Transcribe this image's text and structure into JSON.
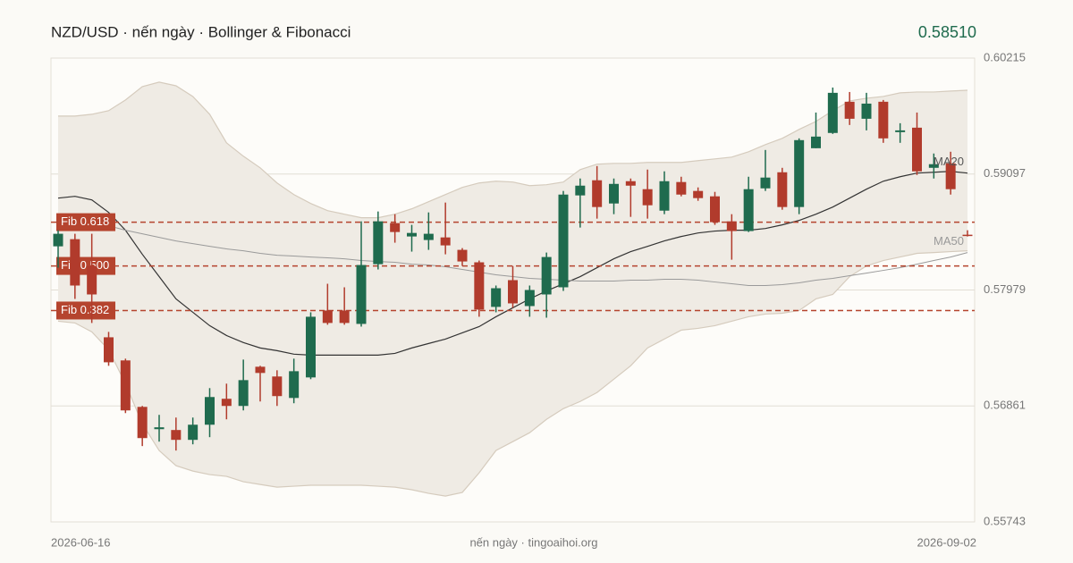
{
  "chart_data": {
    "type": "candlestick",
    "title": "NZD/USD · nến ngày · Bollinger & Fibonacci",
    "last_price": "0.58510",
    "footer": "nến ngày · tingoaihoi.org",
    "categories": [
      "2026-06-16",
      null,
      null,
      null,
      null,
      null,
      null,
      null,
      null,
      null,
      null,
      null,
      null,
      null,
      null,
      null,
      null,
      null,
      null,
      null,
      null,
      null,
      null,
      null,
      null,
      null,
      null,
      null,
      null,
      null,
      null,
      null,
      null,
      null,
      null,
      null,
      null,
      null,
      null,
      null,
      null,
      null,
      null,
      null,
      null,
      null,
      null,
      null,
      null,
      null,
      null,
      null,
      null,
      null,
      "2026-09-02"
    ],
    "open": [
      0.584,
      0.58469,
      0.58211,
      0.57523,
      0.573,
      0.56852,
      0.56637,
      0.56629,
      0.56534,
      0.5668,
      0.5693,
      0.56861,
      0.57239,
      0.57145,
      0.56938,
      0.57136,
      0.57781,
      0.57781,
      0.57652,
      0.58228,
      0.58624,
      0.58495,
      0.58461,
      0.58486,
      0.58366,
      0.58246,
      0.57816,
      0.58074,
      0.57824,
      0.57936,
      0.58005,
      0.58891,
      0.59037,
      0.58813,
      0.59028,
      0.58951,
      0.58744,
      0.5902,
      0.58934,
      0.58882,
      0.58641,
      0.58547,
      0.58959,
      0.59114,
      0.58779,
      0.59346,
      0.59493,
      0.59794,
      0.5963,
      0.59794,
      0.59501,
      0.59544,
      0.59157,
      0.592,
      0.58512
    ],
    "high": [
      0.58555,
      0.58521,
      0.58521,
      0.57575,
      0.57317,
      0.56861,
      0.56775,
      0.56749,
      0.56749,
      0.57033,
      0.57076,
      0.57308,
      0.57248,
      0.57205,
      0.57317,
      0.57764,
      0.58039,
      0.58005,
      0.58641,
      0.58736,
      0.5871,
      0.58607,
      0.58727,
      0.58822,
      0.58383,
      0.58263,
      0.58022,
      0.58211,
      0.58022,
      0.5834,
      0.58934,
      0.59054,
      0.59174,
      0.59054,
      0.59054,
      0.5914,
      0.59123,
      0.59071,
      0.58968,
      0.58925,
      0.5871,
      0.59071,
      0.59329,
      0.59157,
      0.59441,
      0.5969,
      0.59931,
      0.59888,
      0.5988,
      0.59811,
      0.59587,
      0.5969,
      0.59295,
      0.59312,
      0.58555
    ],
    "low": [
      0.58194,
      0.57893,
      0.57661,
      0.57248,
      0.56792,
      0.56474,
      0.56517,
      0.56431,
      0.56491,
      0.5656,
      0.56732,
      0.56818,
      0.56904,
      0.56861,
      0.56887,
      0.57119,
      0.57644,
      0.57644,
      0.57626,
      0.58177,
      0.58435,
      0.58349,
      0.58366,
      0.58323,
      0.58211,
      0.57721,
      0.57764,
      0.57807,
      0.57721,
      0.57712,
      0.5797,
      0.58581,
      0.58667,
      0.5871,
      0.58684,
      0.58667,
      0.5871,
      0.58882,
      0.58839,
      0.58607,
      0.58271,
      0.58538,
      0.58934,
      0.58753,
      0.5871,
      0.59346,
      0.59484,
      0.5957,
      0.59518,
      0.59398,
      0.59398,
      0.59088,
      0.59054,
      0.58899,
      0.58495
    ],
    "close": [
      0.58521,
      0.58022,
      0.57936,
      0.57282,
      0.56818,
      0.56551,
      0.56655,
      0.56534,
      0.5668,
      0.56947,
      0.56861,
      0.5711,
      0.57179,
      0.56956,
      0.57196,
      0.57721,
      0.57661,
      0.57661,
      0.5822,
      0.58641,
      0.58538,
      0.58529,
      0.58521,
      0.58409,
      0.58254,
      0.5779,
      0.57996,
      0.5785,
      0.57979,
      0.58297,
      0.58899,
      0.58985,
      0.58779,
      0.59002,
      0.58985,
      0.58796,
      0.59028,
      0.58899,
      0.58865,
      0.58633,
      0.58547,
      0.58951,
      0.59063,
      0.58779,
      0.59424,
      0.59458,
      0.5988,
      0.5963,
      0.59776,
      0.59441,
      0.59518,
      0.59123,
      0.59192,
      0.58951,
      0.5851
    ],
    "up_color": "#1f6b4e",
    "down_color": "#b13b2c",
    "ylim": [
      0.55743,
      0.60215
    ],
    "yticks": [
      0.60215,
      0.59097,
      0.57979,
      0.56861,
      0.55743
    ],
    "grid": true,
    "bollinger": {
      "fill": "#efebe4",
      "edge": "#d5cbbd",
      "upper": [
        0.59656,
        0.59656,
        0.59673,
        0.59708,
        0.59811,
        0.5994,
        0.59983,
        0.59948,
        0.59845,
        0.59673,
        0.59398,
        0.59269,
        0.59157,
        0.59011,
        0.58899,
        0.58813,
        0.58744,
        0.5871,
        0.58676,
        0.58676,
        0.5871,
        0.58762,
        0.5883,
        0.58899,
        0.58968,
        0.59011,
        0.59028,
        0.5902,
        0.58985,
        0.58994,
        0.5902,
        0.5914,
        0.59192,
        0.592,
        0.592,
        0.59209,
        0.59209,
        0.59209,
        0.59226,
        0.59243,
        0.5926,
        0.59312,
        0.59381,
        0.59441,
        0.59527,
        0.59604,
        0.59708,
        0.59802,
        0.59828,
        0.59845,
        0.5988,
        0.59888,
        0.59888,
        0.59897,
        0.59905
      ],
      "lower": [
        0.57678,
        0.57661,
        0.57575,
        0.57403,
        0.57076,
        0.56689,
        0.56431,
        0.56285,
        0.56233,
        0.56199,
        0.56182,
        0.5613,
        0.56104,
        0.56078,
        0.56087,
        0.56096,
        0.56096,
        0.56096,
        0.56096,
        0.56087,
        0.56078,
        0.56053,
        0.56018,
        0.55992,
        0.56027,
        0.56216,
        0.56431,
        0.56517,
        0.56603,
        0.56732,
        0.56835,
        0.56904,
        0.5699,
        0.57119,
        0.57248,
        0.5742,
        0.57506,
        0.57592,
        0.57609,
        0.57635,
        0.57678,
        0.57721,
        0.57747,
        0.57755,
        0.57781,
        0.57893,
        0.57936,
        0.58108,
        0.58211,
        0.58263,
        0.58297,
        0.58332,
        0.5834,
        0.58349,
        0.58357
      ]
    },
    "series": [
      {
        "name": "MA20",
        "color": "#333333",
        "values": [
          0.58865,
          0.58882,
          0.58848,
          0.58727,
          0.58555,
          0.58323,
          0.58108,
          0.57893,
          0.57764,
          0.57635,
          0.5754,
          0.57472,
          0.5742,
          0.57394,
          0.5736,
          0.57351,
          0.57351,
          0.57351,
          0.57351,
          0.57351,
          0.57368,
          0.5742,
          0.57463,
          0.57506,
          0.57566,
          0.57626,
          0.57721,
          0.57807,
          0.57893,
          0.5797,
          0.58039,
          0.58108,
          0.58194,
          0.5828,
          0.58349,
          0.584,
          0.58452,
          0.58495,
          0.58529,
          0.58547,
          0.58555,
          0.58555,
          0.58572,
          0.58607,
          0.5865,
          0.5871,
          0.58779,
          0.58865,
          0.58951,
          0.59028,
          0.59071,
          0.59106,
          0.59114,
          0.59123,
          0.59106
        ]
      },
      {
        "name": "MA50",
        "color": "#9a9a9a",
        "values": [
          0.58684,
          0.58667,
          0.58633,
          0.58598,
          0.58555,
          0.58521,
          0.58486,
          0.58452,
          0.58426,
          0.584,
          0.58375,
          0.58357,
          0.58332,
          0.58314,
          0.58306,
          0.58297,
          0.58289,
          0.5828,
          0.58263,
          0.58254,
          0.58246,
          0.58228,
          0.5822,
          0.58203,
          0.58177,
          0.58151,
          0.58125,
          0.58108,
          0.58091,
          0.58082,
          0.58074,
          0.58065,
          0.58065,
          0.58065,
          0.58074,
          0.58074,
          0.58082,
          0.58082,
          0.58074,
          0.58056,
          0.58039,
          0.58022,
          0.58022,
          0.58031,
          0.58048,
          0.58074,
          0.58091,
          0.58117,
          0.58142,
          0.58168,
          0.58194,
          0.58228,
          0.58263,
          0.58297,
          0.5834
        ]
      }
    ],
    "fib_color": "#b5442e",
    "fib": [
      {
        "label": "Fib 0.618",
        "value": 0.58633
      },
      {
        "label": "Fib 0.500",
        "value": 0.58211
      },
      {
        "label": "Fib 0.382",
        "value": 0.57781
      }
    ]
  }
}
